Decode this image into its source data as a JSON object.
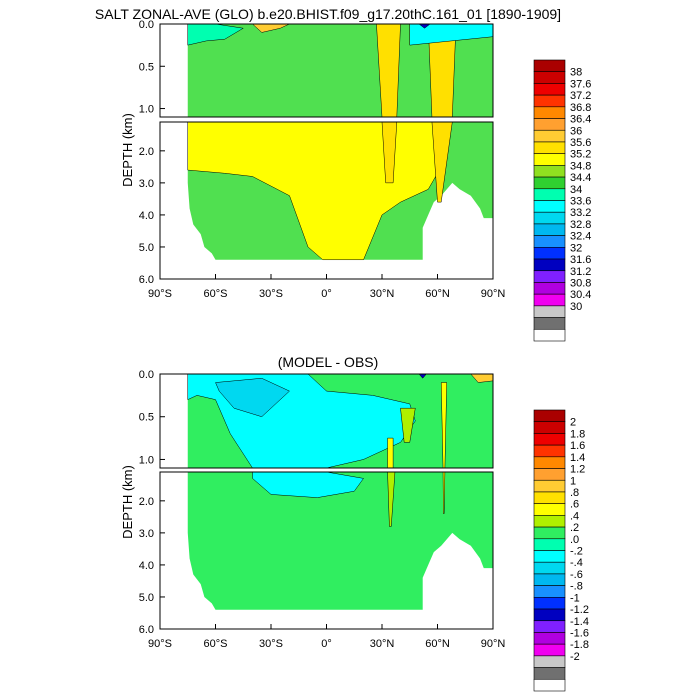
{
  "colors": {
    "ocean_fill_salt": "#50e050",
    "ocean_fill_diff": "#30ee60",
    "frame": "#000000"
  },
  "chart_data": [
    {
      "type": "heatmap",
      "title": "SALT ZONAL-AVE (GLO) b.e20.BHIST.f09_g17.20thC.161_01 [1890-1909]",
      "ylabel": "DEPTH (km)",
      "x_tick_labels": [
        "90°S",
        "60°S",
        "30°S",
        "0°",
        "30°N",
        "60°N",
        "90°N"
      ],
      "x_ticks": [
        -90,
        -60,
        -30,
        0,
        30,
        60,
        90
      ],
      "xlim": [
        -90,
        90
      ],
      "upper_panel": {
        "ylim": [
          0,
          1.1
        ],
        "y_tick_labels": [
          "0.0",
          "0.5",
          "1.0"
        ],
        "y_ticks": [
          0,
          0.5,
          1.0
        ]
      },
      "lower_panel": {
        "ylim": [
          1.1,
          6.0
        ],
        "y_tick_labels": [
          "2.0",
          "3.0",
          "4.0",
          "5.0",
          "6.0"
        ],
        "y_ticks": [
          2,
          3,
          4,
          5,
          6
        ]
      },
      "colorbar": {
        "labels": [
          "38",
          "37.6",
          "37.2",
          "36.8",
          "36.4",
          "36",
          "35.6",
          "35.2",
          "34.8",
          "34.4",
          "34",
          "33.6",
          "33.2",
          "32.8",
          "32.4",
          "32",
          "31.6",
          "31.2",
          "30.8",
          "30.4",
          "30"
        ],
        "colors": [
          "#aa0000",
          "#cc0000",
          "#ee0000",
          "#ff3300",
          "#ff8800",
          "#ffa030",
          "#ffcc33",
          "#ffe000",
          "#ffff00",
          "#90e020",
          "#30d030",
          "#00ffb0",
          "#00ffff",
          "#00d8f0",
          "#00b8f0",
          "#1890ff",
          "#0030ff",
          "#0000c0",
          "#8020ff",
          "#b000e0",
          "#f000f0",
          "#c8c8c8",
          "#707070",
          "#ffffff"
        ]
      },
      "regions": [
        {
          "color": "#ffff00",
          "upper": [],
          "lower": [
            [
              -75,
              1.1
            ],
            [
              -10,
              1.1
            ],
            [
              60,
              1.1
            ],
            [
              62,
              2.5
            ],
            [
              55,
              3.2
            ],
            [
              40,
              3.6
            ],
            [
              30,
              4.0
            ],
            [
              20,
              5.4
            ],
            [
              -2,
              5.4
            ],
            [
              -10,
              5.0
            ],
            [
              -20,
              3.4
            ],
            [
              -40,
              2.8
            ],
            [
              -55,
              2.7
            ],
            [
              -75,
              2.6
            ]
          ]
        },
        {
          "color": "#00ffb0",
          "upper": [
            [
              -75,
              0
            ],
            [
              -60,
              0
            ],
            [
              -45,
              0.05
            ],
            [
              -55,
              0.18
            ],
            [
              -65,
              0.2
            ],
            [
              -75,
              0.25
            ]
          ],
          "lower": []
        },
        {
          "color": "#ffcc33",
          "upper": [
            [
              -40,
              0
            ],
            [
              -20,
              0
            ],
            [
              -25,
              0.05
            ],
            [
              -35,
              0.1
            ]
          ],
          "lower": []
        },
        {
          "color": "#ffcc33",
          "upper": [
            [
              32,
              0
            ],
            [
              36,
              0
            ],
            [
              35,
              0.6
            ],
            [
              33,
              0.6
            ]
          ],
          "lower": []
        },
        {
          "color": "#ffcc33",
          "upper": [
            [
              62,
              0
            ],
            [
              66,
              0
            ],
            [
              65,
              0.6
            ],
            [
              63,
              0.6
            ]
          ],
          "lower": []
        },
        {
          "color": "#ffe000",
          "upper": [
            [
              27,
              0
            ],
            [
              40,
              0
            ],
            [
              38,
              1.1
            ],
            [
              30,
              1.1
            ]
          ],
          "lower": [
            [
              30,
              1.1
            ],
            [
              38,
              1.1
            ],
            [
              36,
              3.0
            ],
            [
              32,
              3.0
            ]
          ]
        },
        {
          "color": "#ffe000",
          "upper": [
            [
              55,
              0
            ],
            [
              70,
              0
            ],
            [
              68,
              1.1
            ],
            [
              57,
              1.1
            ]
          ],
          "lower": [
            [
              57,
              1.1
            ],
            [
              68,
              1.1
            ],
            [
              62,
              3.6
            ],
            [
              60,
              3.6
            ]
          ]
        },
        {
          "color": "#00ffff",
          "upper": [
            [
              45,
              0
            ],
            [
              90,
              0
            ],
            [
              90,
              0.15
            ],
            [
              45,
              0.25
            ]
          ],
          "lower": []
        },
        {
          "color": "#0000c0",
          "upper": [
            [
              50,
              0
            ],
            [
              56,
              0
            ],
            [
              53,
              0.05
            ]
          ],
          "lower": []
        }
      ]
    },
    {
      "type": "heatmap",
      "title": "(MODEL - OBS)",
      "ylabel": "DEPTH (km)",
      "x_tick_labels": [
        "90°S",
        "60°S",
        "30°S",
        "0°",
        "30°N",
        "60°N",
        "90°N"
      ],
      "x_ticks": [
        -90,
        -60,
        -30,
        0,
        30,
        60,
        90
      ],
      "xlim": [
        -90,
        90
      ],
      "upper_panel": {
        "ylim": [
          0,
          1.1
        ],
        "y_tick_labels": [
          "0.0",
          "0.5",
          "1.0"
        ],
        "y_ticks": [
          0,
          0.5,
          1.0
        ]
      },
      "lower_panel": {
        "ylim": [
          1.1,
          6.0
        ],
        "y_tick_labels": [
          "2.0",
          "3.0",
          "4.0",
          "5.0",
          "6.0"
        ],
        "y_ticks": [
          2,
          3,
          4,
          5,
          6
        ]
      },
      "colorbar": {
        "labels": [
          "2",
          "1.8",
          "1.6",
          "1.4",
          "1.2",
          "1",
          ".8",
          ".6",
          ".4",
          ".2",
          ".0",
          "-.2",
          "-.4",
          "-.6",
          "-.8",
          "-1",
          "-1.2",
          "-1.4",
          "-1.6",
          "-1.8",
          "-2"
        ],
        "colors": [
          "#aa0000",
          "#cc0000",
          "#ee0000",
          "#ff3300",
          "#ff8800",
          "#ffa030",
          "#ffcc33",
          "#ffe000",
          "#ffff00",
          "#b0f000",
          "#30ee60",
          "#00ffb0",
          "#00ffff",
          "#00d8f0",
          "#00b8f0",
          "#1890ff",
          "#0030ff",
          "#0000c0",
          "#8020ff",
          "#b000e0",
          "#f000f0",
          "#c8c8c8",
          "#707070",
          "#ffffff"
        ]
      },
      "regions": [
        {
          "color": "#00ffff",
          "upper": [
            [
              -75,
              0
            ],
            [
              -10,
              0
            ],
            [
              0,
              0.2
            ],
            [
              25,
              0.25
            ],
            [
              45,
              0.35
            ],
            [
              48,
              0.55
            ],
            [
              40,
              0.8
            ],
            [
              20,
              1.0
            ],
            [
              0,
              1.1
            ],
            [
              -40,
              1.1
            ],
            [
              -52,
              0.7
            ],
            [
              -60,
              0.3
            ],
            [
              -70,
              0.25
            ],
            [
              -75,
              0.3
            ]
          ],
          "lower": [
            [
              -40,
              1.1
            ],
            [
              0,
              1.1
            ],
            [
              20,
              1.3
            ],
            [
              15,
              1.7
            ],
            [
              -5,
              1.9
            ],
            [
              -30,
              1.8
            ],
            [
              -40,
              1.3
            ]
          ]
        },
        {
          "color": "#00d8f0",
          "upper": [
            [
              -60,
              0.1
            ],
            [
              -35,
              0.05
            ],
            [
              -20,
              0.2
            ],
            [
              -35,
              0.5
            ],
            [
              -50,
              0.4
            ],
            [
              -58,
              0.2
            ]
          ],
          "lower": []
        },
        {
          "color": "#ffff00",
          "upper": [
            [
              33,
              0.75
            ],
            [
              36,
              0.75
            ],
            [
              36,
              1.1
            ],
            [
              33,
              1.1
            ]
          ],
          "lower": []
        },
        {
          "color": "#ffff00",
          "upper": [
            [
              62,
              0.1
            ],
            [
              65,
              0.1
            ],
            [
              64,
              1.1
            ],
            [
              63,
              1.1
            ]
          ],
          "lower": [
            [
              63,
              1.1
            ],
            [
              64,
              1.1
            ],
            [
              63.6,
              2.4
            ],
            [
              63.2,
              2.4
            ]
          ]
        },
        {
          "color": "#b0f000",
          "upper": [
            [
              40,
              0.4
            ],
            [
              48,
              0.4
            ],
            [
              45,
              0.8
            ],
            [
              42,
              0.8
            ]
          ],
          "lower": [
            [
              33,
              1.1
            ],
            [
              37,
              1.1
            ],
            [
              35,
              2.8
            ],
            [
              34,
              2.8
            ]
          ]
        },
        {
          "color": "#ffcc33",
          "upper": [
            [
              78,
              0
            ],
            [
              90,
              0
            ],
            [
              90,
              0.08
            ],
            [
              82,
              0.1
            ]
          ],
          "lower": []
        },
        {
          "color": "#0000c0",
          "upper": [
            [
              50,
              0
            ],
            [
              54,
              0
            ],
            [
              52,
              0.05
            ]
          ],
          "lower": []
        }
      ]
    }
  ]
}
